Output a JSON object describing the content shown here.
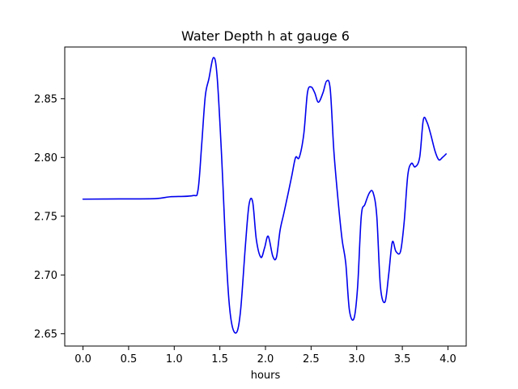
{
  "chart_data": {
    "type": "line",
    "title": "Water Depth h at gauge 6",
    "xlabel": "hours",
    "ylabel": "",
    "xlim": [
      -0.2,
      4.2
    ],
    "ylim": [
      2.6395,
      2.894
    ],
    "xticks": [
      0.0,
      0.5,
      1.0,
      1.5,
      2.0,
      2.5,
      3.0,
      3.5,
      4.0
    ],
    "xtick_labels": [
      "0.0",
      "0.5",
      "1.0",
      "1.5",
      "2.0",
      "2.5",
      "3.0",
      "3.5",
      "4.0"
    ],
    "yticks": [
      2.65,
      2.7,
      2.75,
      2.8,
      2.85
    ],
    "ytick_labels": [
      "2.65",
      "2.70",
      "2.75",
      "2.80",
      "2.85"
    ],
    "grid": false,
    "legend": "none",
    "series": [
      {
        "color": "#0000ee",
        "x": [
          0.0,
          0.4,
          0.8,
          0.95,
          1.2,
          1.26,
          1.3,
          1.34,
          1.38,
          1.43,
          1.47,
          1.52,
          1.56,
          1.6,
          1.64,
          1.69,
          1.73,
          1.78,
          1.82,
          1.86,
          1.9,
          1.95,
          1.99,
          2.03,
          2.08,
          2.12,
          2.16,
          2.2,
          2.25,
          2.29,
          2.33,
          2.37,
          2.42,
          2.46,
          2.5,
          2.54,
          2.58,
          2.63,
          2.67,
          2.71,
          2.75,
          2.8,
          2.84,
          2.88,
          2.92,
          2.97,
          3.01,
          3.05,
          3.09,
          3.14,
          3.18,
          3.22,
          3.26,
          3.31,
          3.35,
          3.39,
          3.43,
          3.48,
          3.52,
          3.56,
          3.6,
          3.64,
          3.69,
          3.73,
          3.77,
          3.81,
          3.86,
          3.9,
          3.94,
          3.98
        ],
        "y": [
          2.7645,
          2.7647,
          2.765,
          2.7665,
          2.7675,
          2.772,
          2.81,
          2.852,
          2.867,
          2.885,
          2.869,
          2.8,
          2.73,
          2.678,
          2.655,
          2.652,
          2.672,
          2.725,
          2.76,
          2.762,
          2.73,
          2.715,
          2.723,
          2.733,
          2.716,
          2.715,
          2.738,
          2.752,
          2.77,
          2.785,
          2.8,
          2.8,
          2.82,
          2.855,
          2.86,
          2.855,
          2.847,
          2.855,
          2.865,
          2.858,
          2.805,
          2.76,
          2.73,
          2.71,
          2.67,
          2.663,
          2.69,
          2.75,
          2.76,
          2.77,
          2.77,
          2.75,
          2.69,
          2.677,
          2.7,
          2.728,
          2.72,
          2.72,
          2.745,
          2.785,
          2.795,
          2.792,
          2.8,
          2.832,
          2.83,
          2.82,
          2.805,
          2.798,
          2.8,
          2.803
        ]
      }
    ]
  }
}
